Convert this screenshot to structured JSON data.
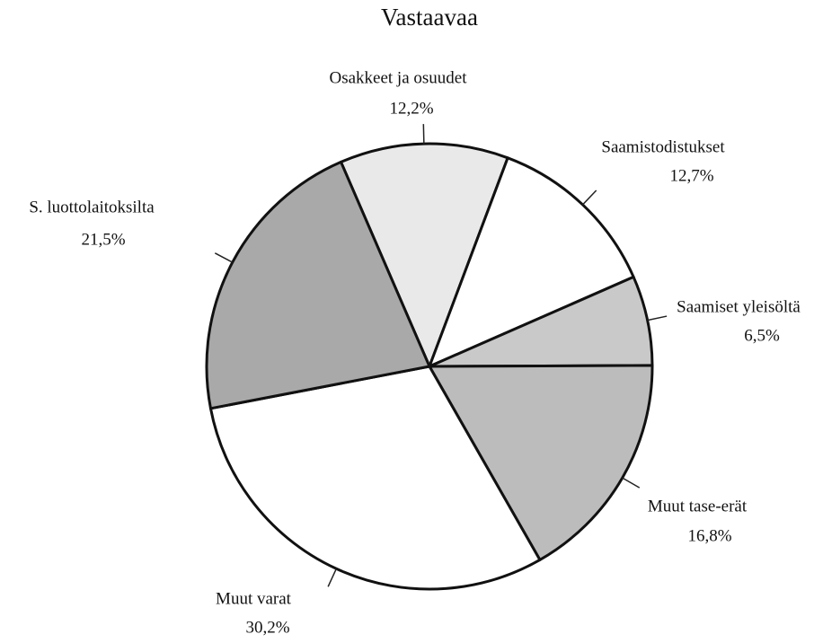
{
  "chart_data": {
    "type": "pie",
    "title": "Vastaavaa",
    "categories": [
      "Osakkeet ja osuudet",
      "Saamistodistukset",
      "Saamiset yleisöltä",
      "Muut tase-erät",
      "Muut varat",
      "S. luottolaitoksilta"
    ],
    "values": [
      12.2,
      12.7,
      6.5,
      16.8,
      30.2,
      21.5
    ],
    "value_labels": [
      "12,2%",
      "12,7%",
      "6,5%",
      "16,8%",
      "30,2%",
      "21,5%"
    ],
    "colors": [
      "#e9e9e9",
      "#ffffff",
      "#c9c9c9",
      "#bcbcbc",
      "#ffffff",
      "#a9a9a9"
    ]
  }
}
